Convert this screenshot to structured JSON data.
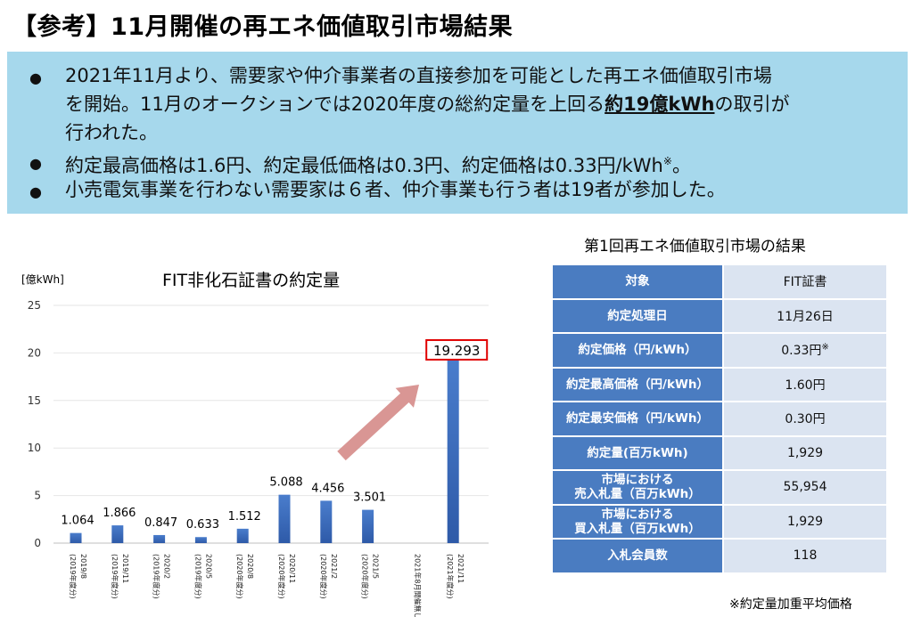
{
  "title": "【参考】11月開催の再エネ価値取引市場結果",
  "summary": {
    "bullet1_line1": "2021年11月より、需要家や仲介事業者の直接参加を可能とした再エネ価値取引市場",
    "bullet1_line2_pre": "を開始。11月のオークションでは2020年度の総約定量を上回る",
    "bullet1_line2_bold": "約19億kWh",
    "bullet1_line2_post": "の取引が",
    "bullet1_line3": "行われた。",
    "bullet2": "約定最高価格は1.6円、約定最低価格は0.3円、約定価格は0.33円/kWh",
    "bullet2_mark": "※",
    "bullet2_end": "。",
    "bullet3": "小売電気事業を行わない需要家は６者、仲介事業も行う者は19者が参加した。",
    "bullet_glyph": "●"
  },
  "chart_data": {
    "type": "bar",
    "title": "FIT非化石証書の約定量",
    "ylabel": "[億kWh]",
    "ylim": [
      0,
      25
    ],
    "yticks": [
      0,
      5,
      10,
      15,
      20,
      25
    ],
    "categories": [
      [
        "2019/8",
        "(2019年度分)"
      ],
      [
        "2019/11",
        "(2019年度分)"
      ],
      [
        "2020/2",
        "(2019年度分)"
      ],
      [
        "2020/5",
        "(2019年度分)"
      ],
      [
        "2020/8",
        "(2020年度分)"
      ],
      [
        "2020/11",
        "(2020年度分)"
      ],
      [
        "2021/2",
        "(2020年度分)"
      ],
      [
        "2021/5",
        "(2020年度分)"
      ],
      [
        "2021年8月開催無し",
        ""
      ],
      [
        "2021/11",
        "(2021年度分)"
      ]
    ],
    "values": [
      1.064,
      1.866,
      0.847,
      0.633,
      1.512,
      5.088,
      4.456,
      3.501,
      null,
      19.293
    ],
    "data_labels": [
      "1.064",
      "1.866",
      "0.847",
      "0.633",
      "1.512",
      "5.088",
      "4.456",
      "3.501",
      "",
      "19.293"
    ],
    "highlight_index": 9,
    "bar_color": "#4472c4",
    "highlight_box_color": "#e00000",
    "arrow_color": "#d99694"
  },
  "table": {
    "title": "第1回再エネ価値取引市場の結果",
    "rows": [
      {
        "label": "対象",
        "value": "FIT証書"
      },
      {
        "label": "約定処理日",
        "value": "11月26日"
      },
      {
        "label": "約定価格（円/kWh）",
        "value": "0.33円",
        "mark": "※"
      },
      {
        "label": "約定最高価格（円/kWh）",
        "value": "1.60円"
      },
      {
        "label": "約定最安価格（円/kWh）",
        "value": "0.30円"
      },
      {
        "label": "約定量(百万kWh)",
        "value": "1,929"
      },
      {
        "label_line1": "市場における",
        "label_line2": "売入札量（百万kWh）",
        "value": "55,954"
      },
      {
        "label_line1": "市場における",
        "label_line2": "買入札量（百万kWh）",
        "value": "1,929"
      },
      {
        "label": "入札会員数",
        "value": "118"
      }
    ],
    "header_color": "#4a7cc1",
    "cell_color": "#dbe4f1"
  },
  "footnote": "※約定量加重平均価格"
}
